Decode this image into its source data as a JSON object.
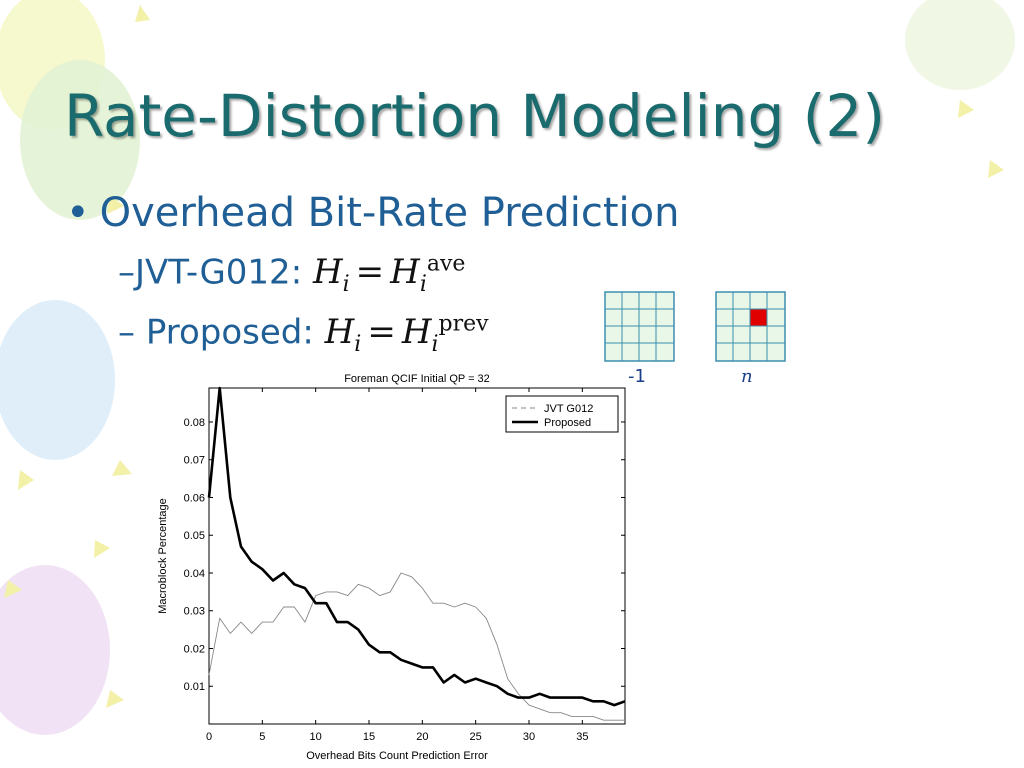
{
  "slide": {
    "title": "Rate-Distortion Modeling (2)",
    "bullet": "Overhead Bit-Rate Prediction",
    "sub_items": [
      {
        "dash": "–",
        "label": "JVT-G012:",
        "lhs": "H",
        "lhs_sub": "i",
        "rhs": "H",
        "rhs_sub": "i",
        "rhs_sup": "ave"
      },
      {
        "dash": "–",
        "label": "Proposed:",
        "lhs": "H",
        "lhs_sub": "i",
        "rhs": "H",
        "rhs_sub": "i",
        "rhs_sup": "prev"
      }
    ],
    "equals": "=",
    "grid_labels": [
      "-1",
      "n"
    ],
    "colors": {
      "title": "#1a6b6e",
      "text": "#1f5f96",
      "grid": "#3a8fb0",
      "highlight": "#e00000"
    }
  },
  "chart_data": {
    "type": "line",
    "title": "Foreman QCIF Initial QP = 32",
    "xlabel": "Overhead Bits Count Prediction Error",
    "ylabel": "Macroblock Percentage",
    "xlim": [
      0,
      39
    ],
    "ylim": [
      0,
      0.089
    ],
    "xticks": [
      0,
      5,
      10,
      15,
      20,
      25,
      30,
      35
    ],
    "yticks": [
      0.01,
      0.02,
      0.03,
      0.04,
      0.05,
      0.06,
      0.07,
      0.08
    ],
    "legend": "top-right",
    "series": [
      {
        "name": "JVT G012",
        "style": "dashed-thin",
        "color": "#888888",
        "x": [
          0,
          1,
          2,
          3,
          4,
          5,
          6,
          7,
          8,
          9,
          10,
          11,
          12,
          13,
          14,
          15,
          16,
          17,
          18,
          19,
          20,
          21,
          22,
          23,
          24,
          25,
          26,
          27,
          28,
          29,
          30,
          31,
          32,
          33,
          34,
          35,
          36,
          37,
          38,
          39
        ],
        "y": [
          0.013,
          0.028,
          0.024,
          0.027,
          0.024,
          0.027,
          0.027,
          0.031,
          0.031,
          0.027,
          0.034,
          0.035,
          0.035,
          0.034,
          0.037,
          0.036,
          0.034,
          0.035,
          0.04,
          0.039,
          0.036,
          0.032,
          0.032,
          0.031,
          0.032,
          0.031,
          0.028,
          0.021,
          0.012,
          0.008,
          0.005,
          0.004,
          0.003,
          0.003,
          0.002,
          0.002,
          0.002,
          0.001,
          0.001,
          0.001
        ]
      },
      {
        "name": "Proposed",
        "style": "solid-thick",
        "color": "#000000",
        "x": [
          0,
          1,
          2,
          3,
          4,
          5,
          6,
          7,
          8,
          9,
          10,
          11,
          12,
          13,
          14,
          15,
          16,
          17,
          18,
          19,
          20,
          21,
          22,
          23,
          24,
          25,
          26,
          27,
          28,
          29,
          30,
          31,
          32,
          33,
          34,
          35,
          36,
          37,
          38,
          39
        ],
        "y": [
          0.06,
          0.089,
          0.06,
          0.047,
          0.043,
          0.041,
          0.038,
          0.04,
          0.037,
          0.036,
          0.032,
          0.032,
          0.027,
          0.027,
          0.025,
          0.021,
          0.019,
          0.019,
          0.017,
          0.016,
          0.015,
          0.015,
          0.011,
          0.013,
          0.011,
          0.012,
          0.011,
          0.01,
          0.008,
          0.007,
          0.007,
          0.008,
          0.007,
          0.007,
          0.007,
          0.007,
          0.006,
          0.006,
          0.005,
          0.006
        ]
      }
    ]
  }
}
